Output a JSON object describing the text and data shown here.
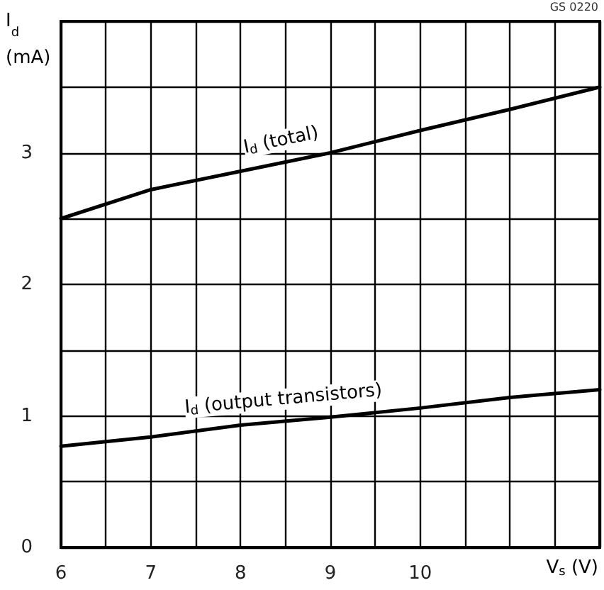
{
  "chart_data": {
    "type": "line",
    "xlabel": "V$_{s}$ (V)",
    "ylabel": "I$_{d}$ (mA)",
    "annotations": [
      "GS 0220"
    ],
    "x": [
      6,
      7,
      8,
      9,
      10,
      11,
      12
    ],
    "series": [
      {
        "name": "I$_{d}$ (total)",
        "color": "#000000",
        "values": [
          2.5,
          2.72,
          2.86,
          3.0,
          3.17,
          3.33,
          3.5
        ]
      },
      {
        "name": "I$_{d}$ (output transistors)",
        "color": "#000000",
        "values": [
          0.77,
          0.84,
          0.93,
          0.99,
          1.06,
          1.14,
          1.2
        ]
      }
    ],
    "xlim": [
      6,
      12
    ],
    "ylim": [
      0,
      4
    ],
    "xticks": [
      6,
      {
        "value": 6.5,
        "label": null
      },
      7,
      {
        "value": 7.5,
        "label": null
      },
      8,
      {
        "value": 8.5,
        "label": null
      },
      9,
      {
        "value": 9.5,
        "label": null
      },
      10,
      {
        "value": 10.5,
        "label": null
      },
      {
        "value": 11,
        "label": null
      },
      {
        "value": 11.5,
        "label": null
      },
      {
        "value": 12,
        "label": null
      }
    ],
    "yticks": [
      0,
      {
        "value": 0.5,
        "label": null
      },
      1,
      {
        "value": 1.5,
        "label": null
      },
      2,
      {
        "value": 2.5,
        "label": null
      },
      3,
      {
        "value": 3.5,
        "label": null
      },
      {
        "value": 4,
        "label": null
      }
    ],
    "grid": true,
    "marker": "none",
    "line_style": "solid"
  }
}
